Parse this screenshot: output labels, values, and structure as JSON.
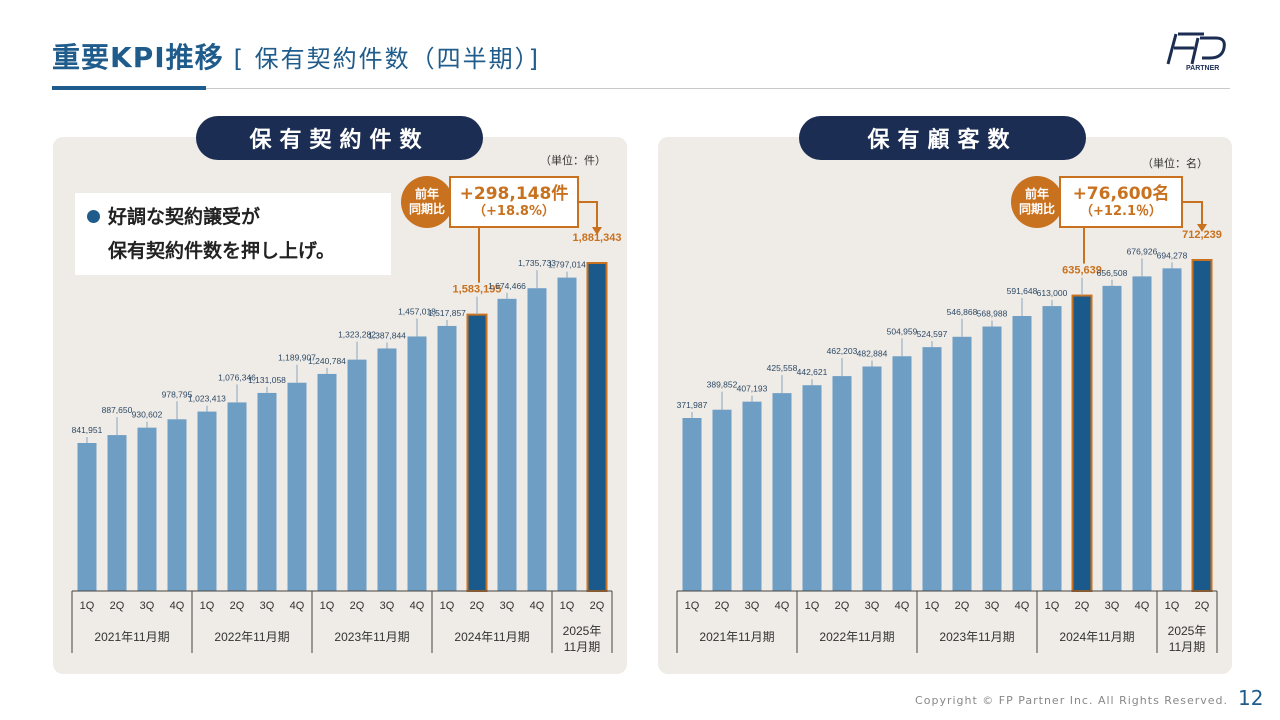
{
  "header": {
    "title_main": "重要KPI推移",
    "title_sub": "[ 保有契約件数（四半期）]",
    "logo_text": "PARTNER"
  },
  "footer": {
    "copyright": "Copyright © FP Partner Inc. All Rights Reserved.",
    "page": "12"
  },
  "colors": {
    "bar": "#6f9ec4",
    "highlight_bar": "#1a5a8a",
    "accent": "#c8711f",
    "navy": "#1b2d52",
    "title_blue": "#1f5c8c",
    "panel_bg": "#efebe6"
  },
  "left_panel": {
    "title": "保有契約件数",
    "unit": "（単位：件）",
    "note_line1": "好調な契約譲受が",
    "note_line2": "保有契約件数を押し上げ。",
    "badge_label1": "前年",
    "badge_label2": "同期比",
    "badge_value": "+298,148件",
    "badge_pct": "（+18.8%）"
  },
  "right_panel": {
    "title": "保有顧客数",
    "unit": "（単位：名）",
    "badge_label1": "前年",
    "badge_label2": "同期比",
    "badge_value": "+76,600名",
    "badge_pct": "（+12.1％）"
  },
  "chart_data": [
    {
      "type": "bar",
      "title": "保有契約件数",
      "unit": "（単位：件）",
      "categories": [
        "1Q",
        "2Q",
        "3Q",
        "4Q",
        "1Q",
        "2Q",
        "3Q",
        "4Q",
        "1Q",
        "2Q",
        "3Q",
        "4Q",
        "1Q",
        "2Q",
        "3Q",
        "4Q",
        "1Q",
        "2Q"
      ],
      "groups": [
        {
          "label": "2021年11月期",
          "count": 4
        },
        {
          "label": "2022年11月期",
          "count": 4
        },
        {
          "label": "2023年11月期",
          "count": 4
        },
        {
          "label": "2024年11月期",
          "count": 4
        },
        {
          "label": "2025年\n11月期",
          "count": 2
        }
      ],
      "values": [
        841951,
        887650,
        930602,
        978795,
        1023413,
        1076346,
        1131058,
        1189907,
        1240784,
        1323282,
        1387844,
        1457018,
        1517857,
        1583195,
        1674466,
        1735733,
        1797014,
        1881343
      ],
      "labels": [
        "841,951",
        "887,650",
        "930,602",
        "978,795",
        "1,023,413",
        "1,076,346",
        "1,131,058",
        "1,189,907",
        "1,240,784",
        "1,323,282",
        "1,387,844",
        "1,457,018",
        "1,517,857",
        "1,583,195",
        "1,674,466",
        "1,735,733",
        "1,797,014",
        "1,881,343"
      ],
      "highlight": [
        13,
        17
      ]
    },
    {
      "type": "bar",
      "title": "保有顧客数",
      "unit": "（単位：名）",
      "categories": [
        "1Q",
        "2Q",
        "3Q",
        "4Q",
        "1Q",
        "2Q",
        "3Q",
        "4Q",
        "1Q",
        "2Q",
        "3Q",
        "4Q",
        "1Q",
        "2Q",
        "3Q",
        "4Q",
        "1Q",
        "2Q"
      ],
      "groups": [
        {
          "label": "2021年11月期",
          "count": 4
        },
        {
          "label": "2022年11月期",
          "count": 4
        },
        {
          "label": "2023年11月期",
          "count": 4
        },
        {
          "label": "2024年11月期",
          "count": 4
        },
        {
          "label": "2025年\n11月期",
          "count": 2
        }
      ],
      "values": [
        371987,
        389852,
        407193,
        425558,
        442621,
        462203,
        482884,
        504959,
        524597,
        546868,
        568988,
        591648,
        613000,
        635639,
        656508,
        676926,
        694278,
        712239
      ],
      "labels": [
        "371,987",
        "389,852",
        "407,193",
        "425,558",
        "442,621",
        "462,203",
        "482,884",
        "504,959",
        "524,597",
        "546,868",
        "568,988",
        "591,648",
        "613,000",
        "635,639",
        "656,508",
        "676,926",
        "694,278",
        "712,239"
      ],
      "highlight": [
        13,
        17
      ]
    }
  ]
}
